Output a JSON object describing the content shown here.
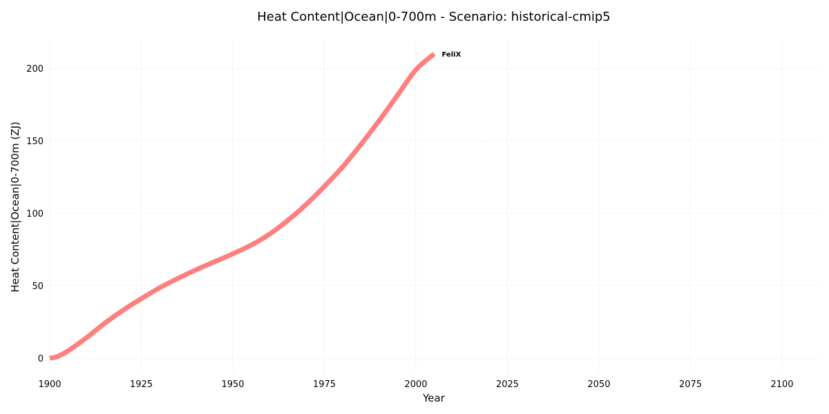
{
  "chart_data": {
    "type": "line",
    "title": "Heat Content|Ocean|0-700m - Scenario: historical-cmip5",
    "xlabel": "Year",
    "ylabel": "Heat Content|Ocean|0-700m (ZJ)",
    "xlim": [
      1900,
      2110
    ],
    "ylim": [
      -10,
      220
    ],
    "xticks": [
      1900,
      1925,
      1950,
      1975,
      2000,
      2025,
      2050,
      2075,
      2100
    ],
    "yticks": [
      0,
      50,
      100,
      150,
      200
    ],
    "grid": true,
    "series": [
      {
        "name": "FeliX",
        "color": "#ff7f7f",
        "x": [
          1900,
          1902,
          1905,
          1910,
          1915,
          1920,
          1925,
          1930,
          1935,
          1940,
          1945,
          1950,
          1955,
          1960,
          1965,
          1970,
          1975,
          1980,
          1985,
          1990,
          1995,
          2000,
          2005
        ],
        "y": [
          0,
          1,
          5,
          14,
          24,
          33,
          41,
          48.5,
          55,
          61,
          66.5,
          72,
          78,
          85.5,
          95,
          106,
          118.5,
          132,
          147.5,
          164,
          181.5,
          199,
          210
        ]
      }
    ]
  }
}
